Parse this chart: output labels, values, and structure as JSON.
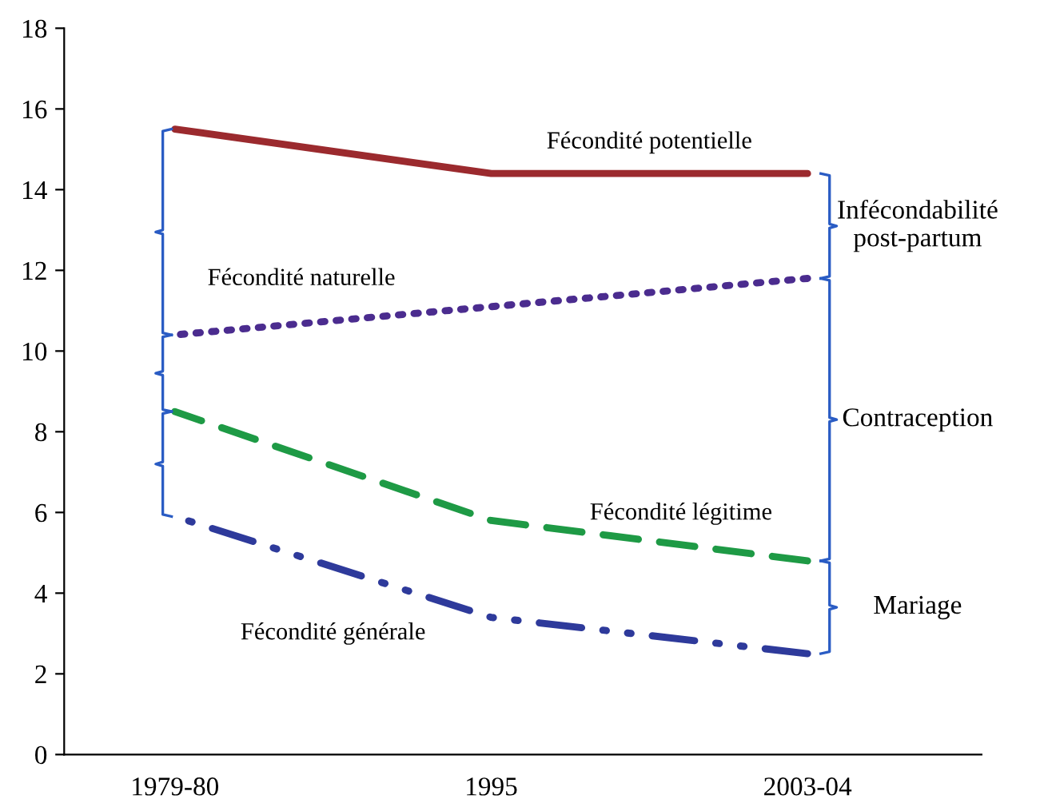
{
  "chart_data": {
    "type": "line",
    "categories": [
      "1979-80",
      "1995",
      "2003-04"
    ],
    "ylim": [
      0,
      18
    ],
    "yticks": [
      0,
      2,
      4,
      6,
      8,
      10,
      12,
      14,
      16,
      18
    ],
    "grid": false,
    "legend": false,
    "marker": "none",
    "series": [
      {
        "name": "Fécondité potentielle",
        "color": "#9b2a2e",
        "line_style": "solid",
        "values": [
          15.5,
          14.4,
          14.4
        ]
      },
      {
        "name": "Fécondité naturelle",
        "color": "#4b2c8f",
        "line_style": "dotted",
        "values": [
          10.4,
          11.1,
          11.8
        ]
      },
      {
        "name": "Fécondité légitime",
        "color": "#1e9a45",
        "line_style": "dashed",
        "values": [
          8.5,
          5.8,
          4.8
        ]
      },
      {
        "name": "Fécondité générale",
        "color": "#2e3a9b",
        "line_style": "dashdot",
        "values": [
          5.9,
          3.4,
          2.5
        ]
      }
    ],
    "annotations": [
      "Infécondabilité\npost-partum",
      "Contraception",
      "Mariage"
    ]
  }
}
